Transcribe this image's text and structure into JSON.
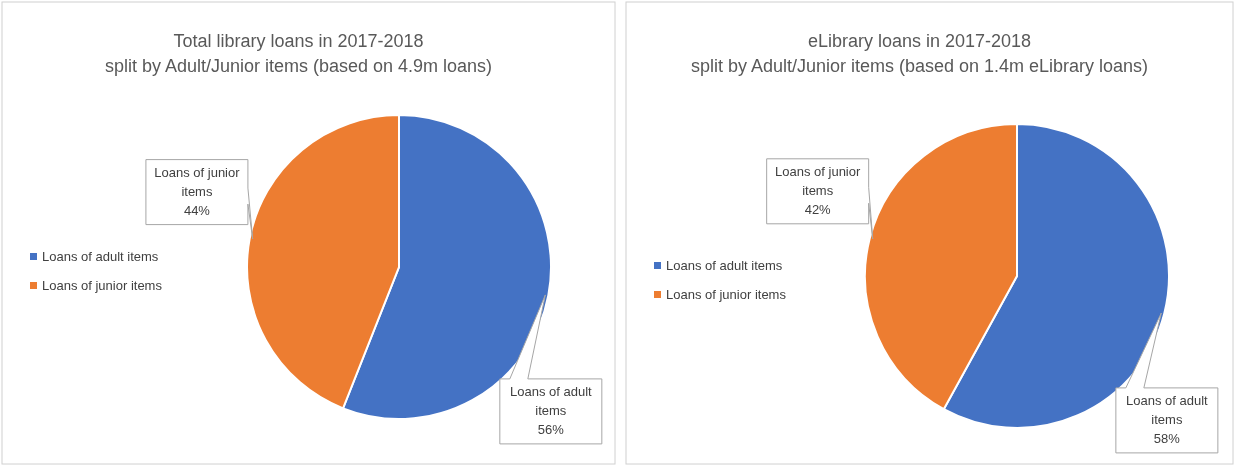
{
  "chart_data": [
    {
      "type": "pie",
      "title": "Total library loans in 2017-2018",
      "subtitle": "split by Adult/Junior items (based on 4.9m loans)",
      "categories": [
        "Loans of adult items",
        "Loans of junior items"
      ],
      "values": [
        56,
        44
      ],
      "colors": [
        "#4472c4",
        "#ed7d31"
      ],
      "value_labels": [
        "56%",
        "44%"
      ],
      "legend": "left"
    },
    {
      "type": "pie",
      "title": "eLibrary loans in 2017-2018",
      "subtitle": "split by Adult/Junior items (based on 1.4m eLibrary loans)",
      "categories": [
        "Loans of adult items",
        "Loans of junior items"
      ],
      "values": [
        58,
        42
      ],
      "colors": [
        "#4472c4",
        "#ed7d31"
      ],
      "value_labels": [
        "58%",
        "42%"
      ],
      "legend": "left"
    }
  ]
}
